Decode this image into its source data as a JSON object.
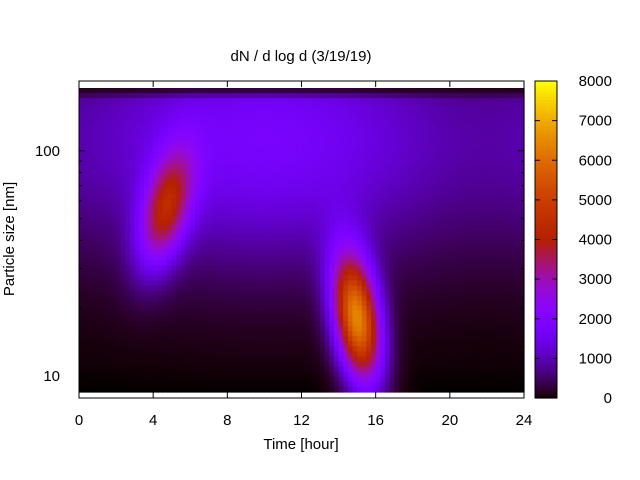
{
  "chart_data": {
    "type": "heatmap",
    "title": "dN / d log d (3/19/19)",
    "xlabel": "Time [hour]",
    "ylabel": "Particle size [nm]",
    "xlim": [
      0,
      24
    ],
    "x_ticks": [
      "0",
      "4",
      "8",
      "12",
      "16",
      "20",
      "24"
    ],
    "y_scale": "log",
    "ylim_nm": [
      8.5,
      190
    ],
    "y_ticks": [
      "10",
      "100"
    ],
    "colorbar": {
      "range": [
        0,
        8000
      ],
      "ticks": [
        "0",
        "1000",
        "2000",
        "3000",
        "4000",
        "5000",
        "6000",
        "7000",
        "8000"
      ],
      "palette": "black-purple-red-orange-yellow"
    },
    "background_level": 1800,
    "features": [
      {
        "description_label": "",
        "t_hour": 4.7,
        "d_nm": 55,
        "peak": 4300
      },
      {
        "description_label": "",
        "t_hour": 15.0,
        "d_nm": 18,
        "peak": 7200
      }
    ],
    "colors": {
      "frame": "#000000",
      "axis_text": "#000000"
    }
  }
}
